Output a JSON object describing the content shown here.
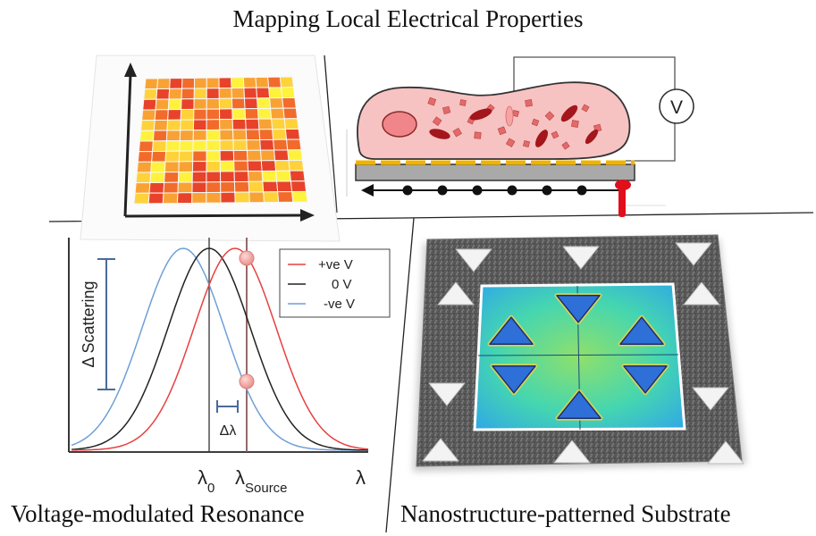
{
  "title": "Mapping Local Electrical Properties",
  "captions": {
    "left": "Voltage-modulated Resonance",
    "right": "Nanostructure-patterned Substrate"
  },
  "cell_diagram": {
    "voltmeter_label": "V"
  },
  "resonance_plot": {
    "y_label": "Δ Scattering",
    "delta_lambda": "Δλ",
    "lambda0": "λ0",
    "lambda_source": "λSource",
    "x_label": "λ",
    "legend": [
      {
        "label": "+ve V",
        "color": "#e84040"
      },
      {
        "label": "0  V",
        "color": "#222222"
      },
      {
        "label": "-ve V",
        "color": "#6f9fd8"
      }
    ]
  },
  "colors": {
    "heatmap": [
      "#e8432a",
      "#f26b2b",
      "#f9a234",
      "#ffd23a",
      "#fff23d"
    ],
    "cell_body": "#f7c2c2",
    "cell_outline": "#333333",
    "substrate_gold": "#f0b400"
  }
}
